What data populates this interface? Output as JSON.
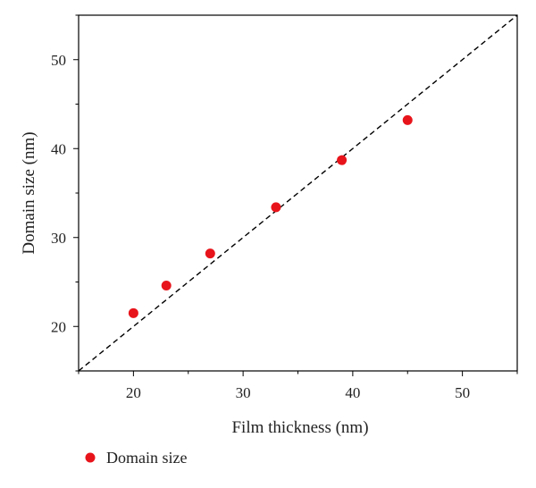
{
  "chart_data": {
    "type": "scatter",
    "title": "",
    "xlabel": "Film thickness (nm)",
    "ylabel": "Domain size (nm)",
    "xlim": [
      15,
      55
    ],
    "ylim": [
      15,
      55
    ],
    "xticks": [
      20,
      30,
      40,
      50
    ],
    "yticks": [
      20,
      30,
      40,
      50
    ],
    "grid": false,
    "legend_position": "bottom-left, below plot",
    "series": [
      {
        "name": "Domain size",
        "color": "#e8141b",
        "marker": "circle",
        "x": [
          20,
          23,
          27,
          33,
          39,
          45
        ],
        "y": [
          21.5,
          24.6,
          28.2,
          33.4,
          38.7,
          43.2
        ]
      }
    ],
    "reference_line": {
      "style": "dashed",
      "color": "#000000",
      "from": [
        15,
        15
      ],
      "to": [
        55,
        55
      ]
    }
  }
}
